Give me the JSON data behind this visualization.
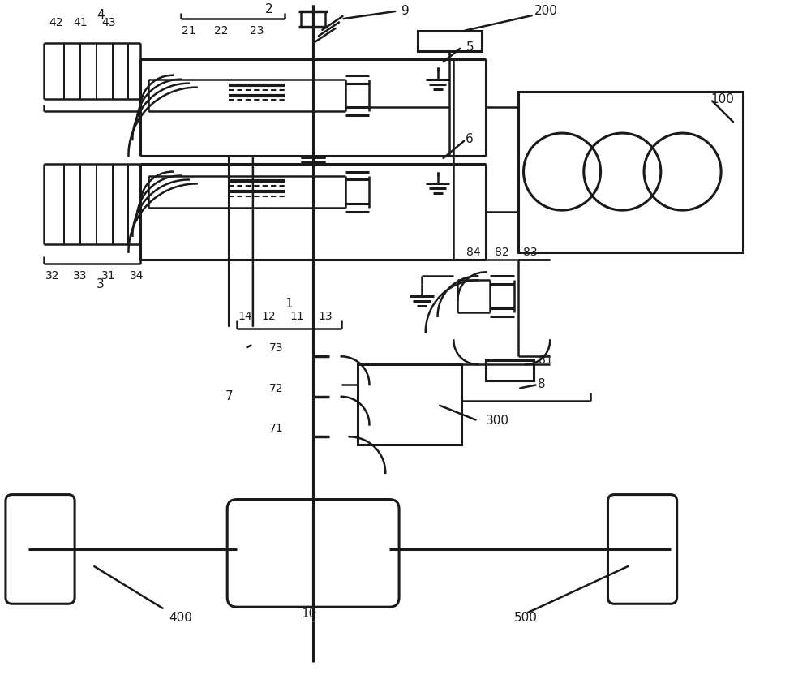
{
  "bg_color": "#ffffff",
  "line_color": "#1a1a1a",
  "lw": 1.8,
  "lw_thick": 2.2,
  "font_size": 11
}
